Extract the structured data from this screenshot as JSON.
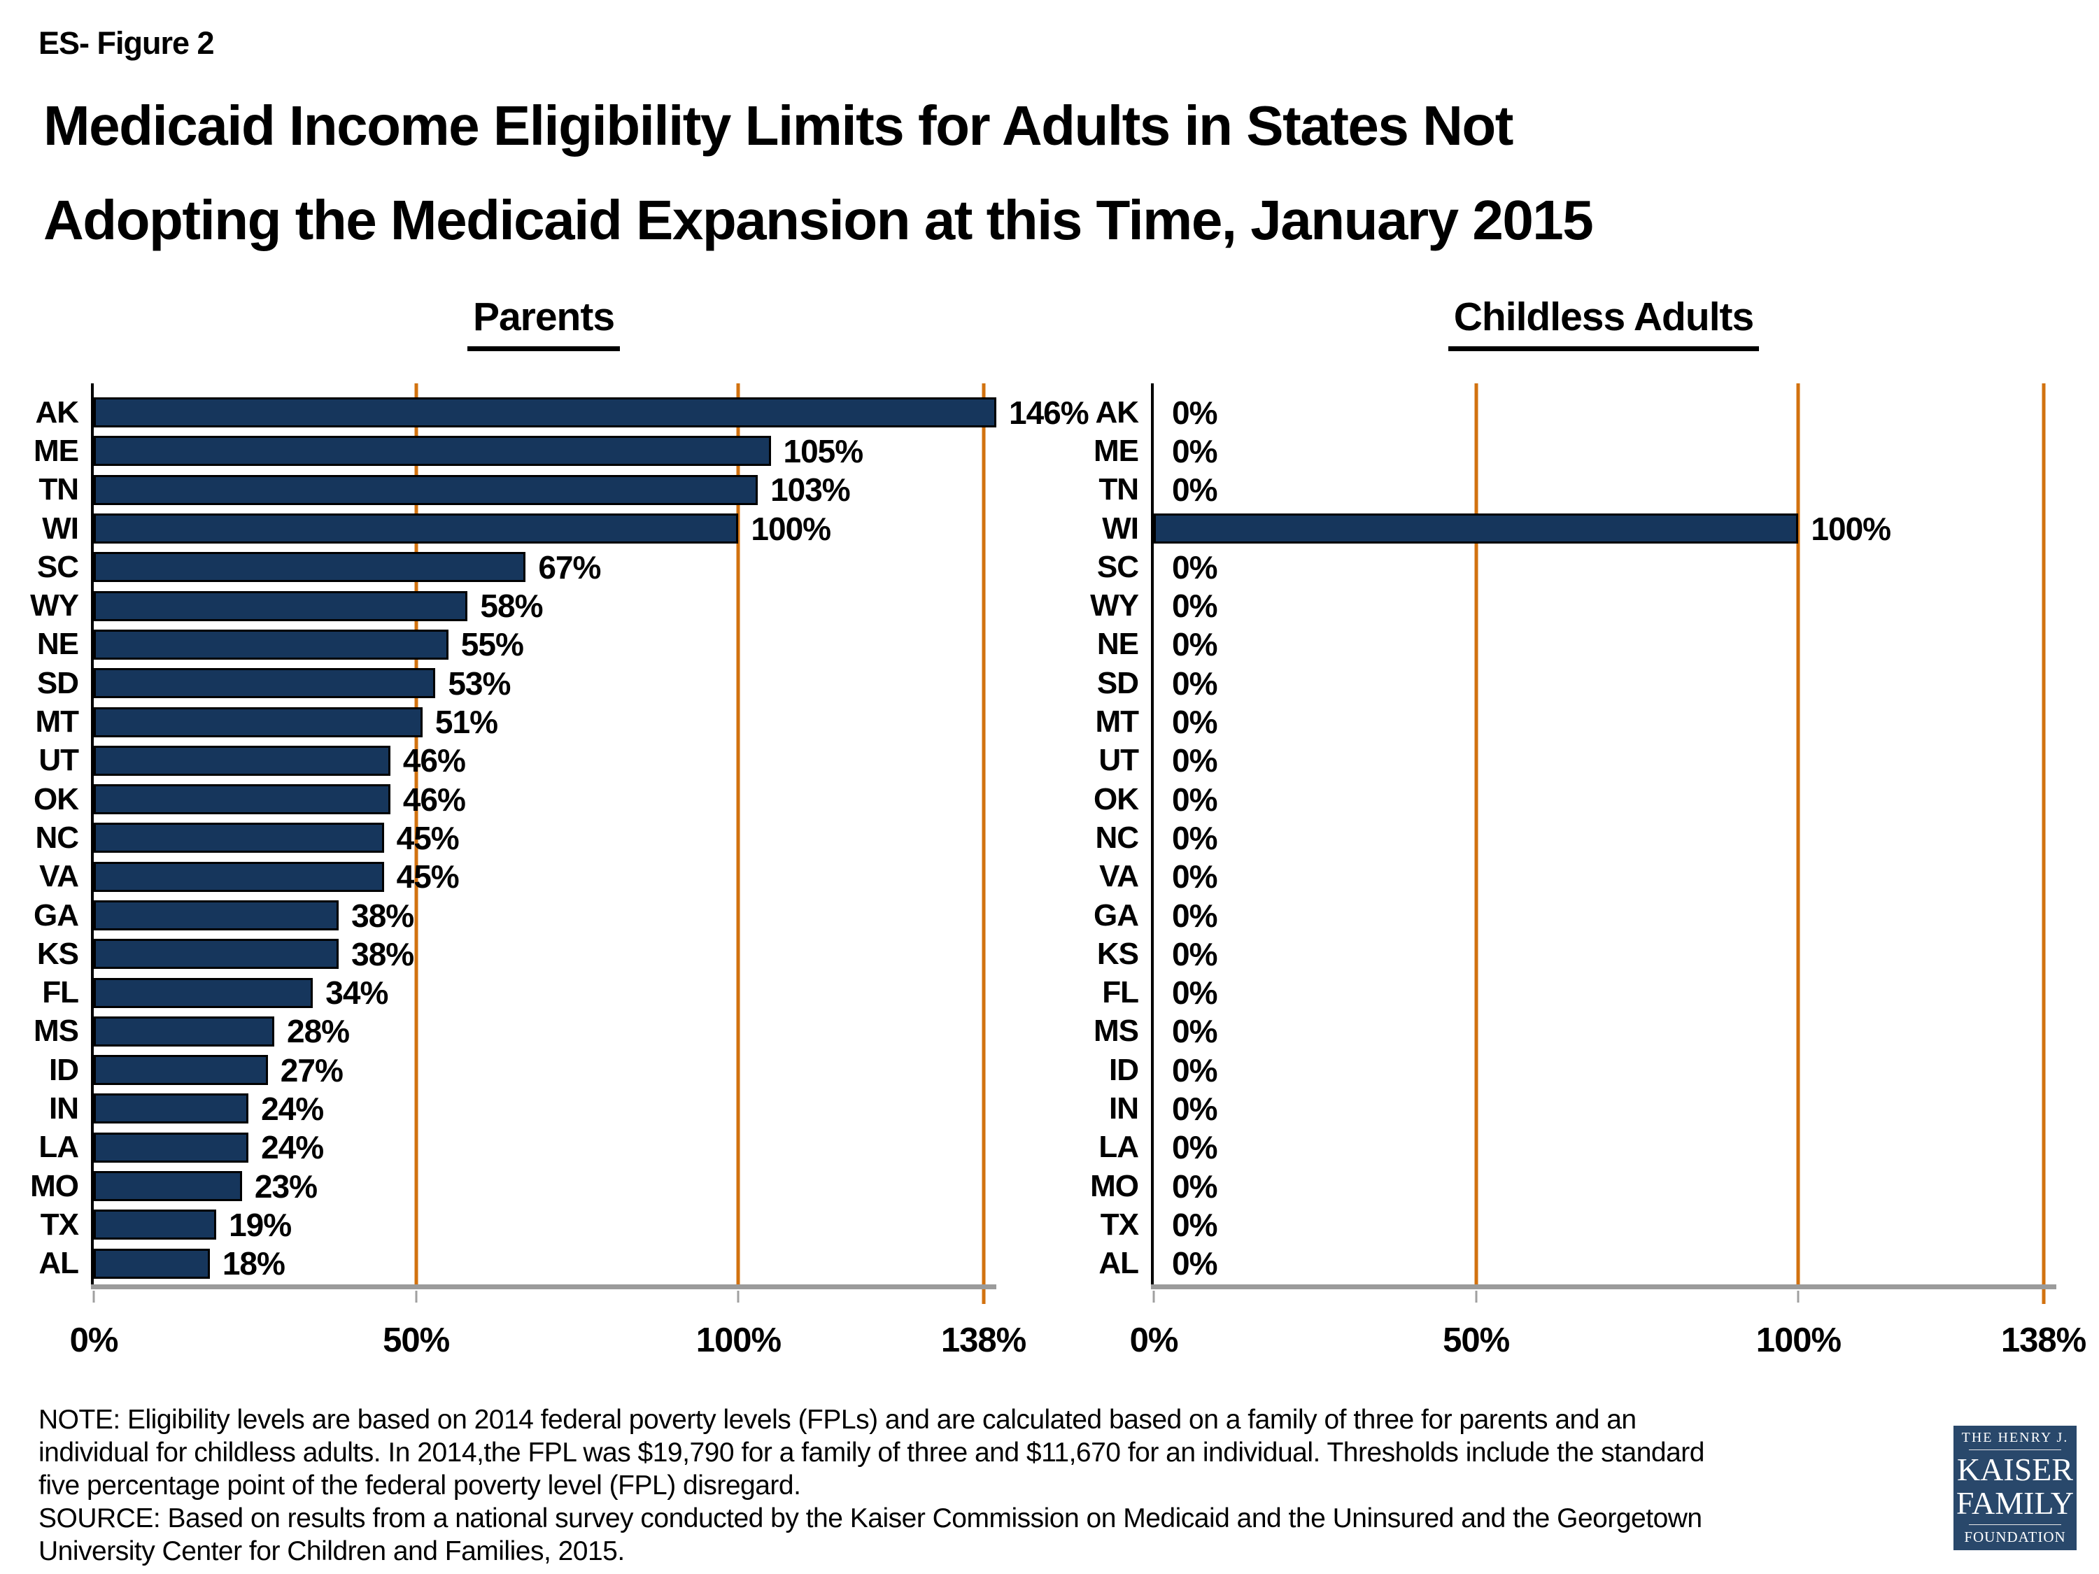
{
  "figure_label": "ES- Figure 2",
  "title_line1": "Medicaid Income Eligibility Limits for Adults in States Not",
  "title_line2": "Adopting the Medicaid Expansion at this Time, January 2015",
  "colors": {
    "bar_fill": "#16365c",
    "bar_border": "#000000",
    "gridline_orange": "#d2720f",
    "axis_black": "#000000",
    "axis_gray": "#9b9b9b",
    "tick_gray": "#a0a0a0",
    "logo_bg": "#29486b",
    "background": "#ffffff"
  },
  "chart_data": [
    {
      "type": "bar",
      "orientation": "horizontal",
      "title": "Parents",
      "categories": [
        "AK",
        "ME",
        "TN",
        "WI",
        "SC",
        "WY",
        "NE",
        "SD",
        "MT",
        "UT",
        "OK",
        "NC",
        "VA",
        "GA",
        "KS",
        "FL",
        "MS",
        "ID",
        "IN",
        "LA",
        "MO",
        "TX",
        "AL"
      ],
      "values": [
        146,
        105,
        103,
        100,
        67,
        58,
        55,
        53,
        51,
        46,
        46,
        45,
        45,
        38,
        38,
        34,
        28,
        27,
        24,
        24,
        23,
        19,
        18
      ],
      "labels": [
        "146%",
        "105%",
        "103%",
        "100%",
        "67%",
        "58%",
        "55%",
        "53%",
        "51%",
        "46%",
        "46%",
        "45%",
        "45%",
        "38%",
        "38%",
        "34%",
        "28%",
        "27%",
        "24%",
        "24%",
        "23%",
        "19%",
        "18%"
      ],
      "xlabel": "",
      "ylabel": "",
      "xlim": [
        0,
        140
      ],
      "gridlines": [
        50,
        100,
        138
      ],
      "ticks": [
        {
          "value": 0,
          "label": "0%"
        },
        {
          "value": 50,
          "label": "50%"
        },
        {
          "value": 100,
          "label": "100%"
        },
        {
          "value": 138,
          "label": "138%"
        }
      ],
      "grid": true,
      "legend": false
    },
    {
      "type": "bar",
      "orientation": "horizontal",
      "title": "Childless Adults",
      "categories": [
        "AK",
        "ME",
        "TN",
        "WI",
        "SC",
        "WY",
        "NE",
        "SD",
        "MT",
        "UT",
        "OK",
        "NC",
        "VA",
        "GA",
        "KS",
        "FL",
        "MS",
        "ID",
        "IN",
        "LA",
        "MO",
        "TX",
        "AL"
      ],
      "values": [
        0,
        0,
        0,
        100,
        0,
        0,
        0,
        0,
        0,
        0,
        0,
        0,
        0,
        0,
        0,
        0,
        0,
        0,
        0,
        0,
        0,
        0,
        0
      ],
      "labels": [
        "0%",
        "0%",
        "0%",
        "100%",
        "0%",
        "0%",
        "0%",
        "0%",
        "0%",
        "0%",
        "0%",
        "0%",
        "0%",
        "0%",
        "0%",
        "0%",
        "0%",
        "0%",
        "0%",
        "0%",
        "0%",
        "0%",
        "0%"
      ],
      "xlabel": "",
      "ylabel": "",
      "xlim": [
        0,
        140
      ],
      "gridlines": [
        50,
        100,
        138
      ],
      "ticks": [
        {
          "value": 0,
          "label": "0%"
        },
        {
          "value": 50,
          "label": "50%"
        },
        {
          "value": 100,
          "label": "100%"
        },
        {
          "value": 138,
          "label": "138%"
        }
      ],
      "grid": true,
      "legend": false
    }
  ],
  "note": {
    "note_text": "NOTE: Eligibility levels are based on 2014 federal poverty levels (FPLs) and are calculated based on a family of three for parents and an\nindividual for childless adults. In 2014,the FPL was $19,790 for a family of three and $11,670 for an individual. Thresholds include the standard\nfive percentage point of the federal poverty level (FPL) disregard.",
    "source_text": "SOURCE: Based on results from a national survey conducted by the Kaiser Commission on Medicaid and the Uninsured and the Georgetown\nUniversity Center for Children and Families, 2015."
  },
  "logo": {
    "line1": "THE HENRY J.",
    "line2": "KAISER",
    "line3": "FAMILY",
    "line4": "FOUNDATION"
  }
}
